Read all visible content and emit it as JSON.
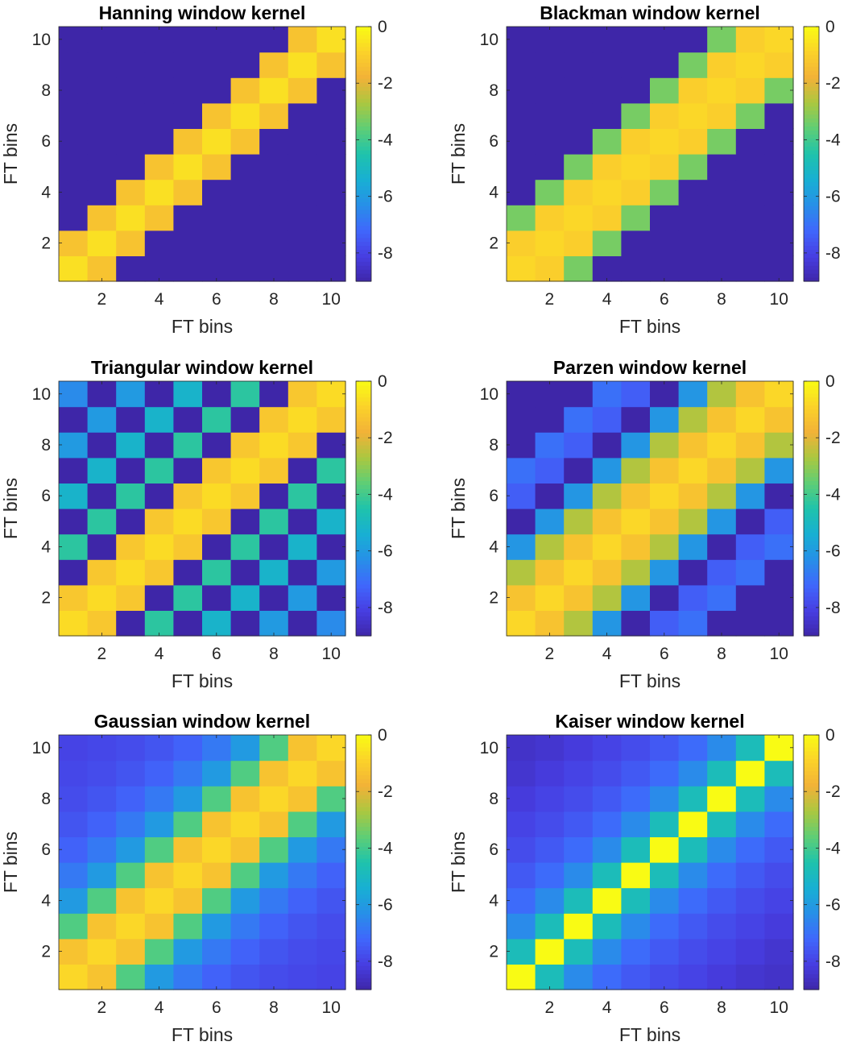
{
  "chart_data": [
    {
      "type": "heatmap",
      "title": "Hanning window kernel",
      "xlabel": "FT bins",
      "ylabel": "FT bins",
      "x": [
        1,
        2,
        3,
        4,
        5,
        6,
        7,
        8,
        9,
        10
      ],
      "y": [
        1,
        2,
        3,
        4,
        5,
        6,
        7,
        8,
        9,
        10
      ],
      "xticks": [
        2,
        4,
        6,
        8,
        10
      ],
      "yticks": [
        2,
        4,
        6,
        8,
        10
      ],
      "clim": [
        -9,
        0
      ],
      "colorbar_ticks": [
        0,
        -2,
        -4,
        -6,
        -8
      ],
      "values": [
        [
          -0.6,
          -1.3,
          -9,
          -9,
          -9,
          -9,
          -9,
          -9,
          -9,
          -9
        ],
        [
          -1.3,
          -0.6,
          -1.3,
          -9,
          -9,
          -9,
          -9,
          -9,
          -9,
          -9
        ],
        [
          -9,
          -1.3,
          -0.6,
          -1.3,
          -9,
          -9,
          -9,
          -9,
          -9,
          -9
        ],
        [
          -9,
          -9,
          -1.3,
          -0.6,
          -1.3,
          -9,
          -9,
          -9,
          -9,
          -9
        ],
        [
          -9,
          -9,
          -9,
          -1.3,
          -0.6,
          -1.3,
          -9,
          -9,
          -9,
          -9
        ],
        [
          -9,
          -9,
          -9,
          -9,
          -1.3,
          -0.6,
          -1.3,
          -9,
          -9,
          -9
        ],
        [
          -9,
          -9,
          -9,
          -9,
          -9,
          -1.3,
          -0.6,
          -1.3,
          -9,
          -9
        ],
        [
          -9,
          -9,
          -9,
          -9,
          -9,
          -9,
          -1.3,
          -0.6,
          -1.3,
          -9
        ],
        [
          -9,
          -9,
          -9,
          -9,
          -9,
          -9,
          -9,
          -1.3,
          -0.6,
          -1.3
        ],
        [
          -9,
          -9,
          -9,
          -9,
          -9,
          -9,
          -9,
          -9,
          -1.3,
          -0.6
        ]
      ]
    },
    {
      "type": "heatmap",
      "title": "Blackman window kernel",
      "xlabel": "FT bins",
      "ylabel": "FT bins",
      "x": [
        1,
        2,
        3,
        4,
        5,
        6,
        7,
        8,
        9,
        10
      ],
      "y": [
        1,
        2,
        3,
        4,
        5,
        6,
        7,
        8,
        9,
        10
      ],
      "xticks": [
        2,
        4,
        6,
        8,
        10
      ],
      "yticks": [
        2,
        4,
        6,
        8,
        10
      ],
      "clim": [
        -9,
        0
      ],
      "colorbar_ticks": [
        0,
        -2,
        -4,
        -6,
        -8
      ],
      "values": [
        [
          -0.8,
          -1.0,
          -3.3,
          -9,
          -9,
          -9,
          -9,
          -9,
          -9,
          -9
        ],
        [
          -1.0,
          -0.8,
          -1.0,
          -3.3,
          -9,
          -9,
          -9,
          -9,
          -9,
          -9
        ],
        [
          -3.3,
          -1.0,
          -0.8,
          -1.0,
          -3.3,
          -9,
          -9,
          -9,
          -9,
          -9
        ],
        [
          -9,
          -3.3,
          -1.0,
          -0.8,
          -1.0,
          -3.3,
          -9,
          -9,
          -9,
          -9
        ],
        [
          -9,
          -9,
          -3.3,
          -1.0,
          -0.8,
          -1.0,
          -3.3,
          -9,
          -9,
          -9
        ],
        [
          -9,
          -9,
          -9,
          -3.3,
          -1.0,
          -0.8,
          -1.0,
          -3.3,
          -9,
          -9
        ],
        [
          -9,
          -9,
          -9,
          -9,
          -3.3,
          -1.0,
          -0.8,
          -1.0,
          -3.3,
          -9
        ],
        [
          -9,
          -9,
          -9,
          -9,
          -9,
          -3.3,
          -1.0,
          -0.8,
          -1.0,
          -3.3
        ],
        [
          -9,
          -9,
          -9,
          -9,
          -9,
          -9,
          -3.3,
          -1.0,
          -0.8,
          -1.0
        ],
        [
          -9,
          -9,
          -9,
          -9,
          -9,
          -9,
          -9,
          -3.3,
          -1.0,
          -0.8
        ]
      ]
    },
    {
      "type": "heatmap",
      "title": "Triangular window kernel",
      "xlabel": "FT bins",
      "ylabel": "FT bins",
      "x": [
        1,
        2,
        3,
        4,
        5,
        6,
        7,
        8,
        9,
        10
      ],
      "y": [
        1,
        2,
        3,
        4,
        5,
        6,
        7,
        8,
        9,
        10
      ],
      "xticks": [
        2,
        4,
        6,
        8,
        10
      ],
      "yticks": [
        2,
        4,
        6,
        8,
        10
      ],
      "clim": [
        -9,
        0
      ],
      "colorbar_ticks": [
        0,
        -2,
        -4,
        -6,
        -8
      ],
      "values": [
        [
          -0.7,
          -1.2,
          -9,
          -4.3,
          -9,
          -5.2,
          -9,
          -6.0,
          -9,
          -6.4
        ],
        [
          -1.2,
          -0.7,
          -1.2,
          -9,
          -4.3,
          -9,
          -5.2,
          -9,
          -6.0,
          -9
        ],
        [
          -9,
          -1.2,
          -0.7,
          -1.2,
          -9,
          -4.3,
          -9,
          -5.2,
          -9,
          -6.0
        ],
        [
          -4.3,
          -9,
          -1.2,
          -0.7,
          -1.2,
          -9,
          -4.3,
          -9,
          -5.2,
          -9
        ],
        [
          -9,
          -4.3,
          -9,
          -1.2,
          -0.7,
          -1.2,
          -9,
          -4.3,
          -9,
          -5.2
        ],
        [
          -5.2,
          -9,
          -4.3,
          -9,
          -1.2,
          -0.7,
          -1.2,
          -9,
          -4.3,
          -9
        ],
        [
          -9,
          -5.2,
          -9,
          -4.3,
          -9,
          -1.2,
          -0.7,
          -1.2,
          -9,
          -4.3
        ],
        [
          -6.0,
          -9,
          -5.2,
          -9,
          -4.3,
          -9,
          -1.2,
          -0.7,
          -1.2,
          -9
        ],
        [
          -9,
          -6.0,
          -9,
          -5.2,
          -9,
          -4.3,
          -9,
          -1.2,
          -0.7,
          -1.2
        ],
        [
          -6.4,
          -9,
          -6.0,
          -9,
          -5.2,
          -9,
          -4.3,
          -9,
          -1.2,
          -0.7
        ]
      ]
    },
    {
      "type": "heatmap",
      "title": "Parzen window kernel",
      "xlabel": "FT bins",
      "ylabel": "FT bins",
      "x": [
        1,
        2,
        3,
        4,
        5,
        6,
        7,
        8,
        9,
        10
      ],
      "y": [
        1,
        2,
        3,
        4,
        5,
        6,
        7,
        8,
        9,
        10
      ],
      "xticks": [
        2,
        4,
        6,
        8,
        10
      ],
      "yticks": [
        2,
        4,
        6,
        8,
        10
      ],
      "clim": [
        -9,
        0
      ],
      "colorbar_ticks": [
        0,
        -2,
        -4,
        -6,
        -8
      ],
      "values": [
        [
          -0.8,
          -1.3,
          -2.6,
          -6.1,
          -9,
          -7.4,
          -7.0,
          -9,
          -9,
          -9
        ],
        [
          -1.3,
          -0.8,
          -1.3,
          -2.6,
          -6.1,
          -9,
          -7.4,
          -7.0,
          -9,
          -9
        ],
        [
          -2.6,
          -1.3,
          -0.8,
          -1.3,
          -2.6,
          -6.1,
          -9,
          -7.4,
          -7.0,
          -9
        ],
        [
          -6.1,
          -2.6,
          -1.3,
          -0.8,
          -1.3,
          -2.6,
          -6.1,
          -9,
          -7.4,
          -7.0
        ],
        [
          -9,
          -6.1,
          -2.6,
          -1.3,
          -0.8,
          -1.3,
          -2.6,
          -6.1,
          -9,
          -7.4
        ],
        [
          -7.4,
          -9,
          -6.1,
          -2.6,
          -1.3,
          -0.8,
          -1.3,
          -2.6,
          -6.1,
          -9
        ],
        [
          -7.0,
          -7.4,
          -9,
          -6.1,
          -2.6,
          -1.3,
          -0.8,
          -1.3,
          -2.6,
          -6.1
        ],
        [
          -9,
          -7.0,
          -7.4,
          -9,
          -6.1,
          -2.6,
          -1.3,
          -0.8,
          -1.3,
          -2.6
        ],
        [
          -9,
          -9,
          -7.0,
          -7.4,
          -9,
          -6.1,
          -2.6,
          -1.3,
          -0.8,
          -1.3
        ],
        [
          -9,
          -9,
          -9,
          -7.0,
          -7.4,
          -9,
          -6.1,
          -2.6,
          -1.3,
          -0.8
        ]
      ]
    },
    {
      "type": "heatmap",
      "title": "Gaussian window kernel",
      "xlabel": "FT bins",
      "ylabel": "FT bins",
      "x": [
        1,
        2,
        3,
        4,
        5,
        6,
        7,
        8,
        9,
        10
      ],
      "y": [
        1,
        2,
        3,
        4,
        5,
        6,
        7,
        8,
        9,
        10
      ],
      "xticks": [
        2,
        4,
        6,
        8,
        10
      ],
      "yticks": [
        2,
        4,
        6,
        8,
        10
      ],
      "clim": [
        -9,
        0
      ],
      "colorbar_ticks": [
        0,
        -2,
        -4,
        -6,
        -8
      ],
      "values": [
        [
          -0.8,
          -1.3,
          -3.8,
          -6.0,
          -6.8,
          -7.3,
          -7.6,
          -7.8,
          -7.9,
          -8.0
        ],
        [
          -1.3,
          -0.8,
          -1.3,
          -3.8,
          -6.0,
          -6.8,
          -7.3,
          -7.6,
          -7.8,
          -7.9
        ],
        [
          -3.8,
          -1.3,
          -0.8,
          -1.3,
          -3.8,
          -6.0,
          -6.8,
          -7.3,
          -7.6,
          -7.8
        ],
        [
          -6.0,
          -3.8,
          -1.3,
          -0.8,
          -1.3,
          -3.8,
          -6.0,
          -6.8,
          -7.3,
          -7.6
        ],
        [
          -6.8,
          -6.0,
          -3.8,
          -1.3,
          -0.8,
          -1.3,
          -3.8,
          -6.0,
          -6.8,
          -7.3
        ],
        [
          -7.3,
          -6.8,
          -6.0,
          -3.8,
          -1.3,
          -0.8,
          -1.3,
          -3.8,
          -6.0,
          -6.8
        ],
        [
          -7.6,
          -7.3,
          -6.8,
          -6.0,
          -3.8,
          -1.3,
          -0.8,
          -1.3,
          -3.8,
          -6.0
        ],
        [
          -7.8,
          -7.6,
          -7.3,
          -6.8,
          -6.0,
          -3.8,
          -1.3,
          -0.8,
          -1.3,
          -3.8
        ],
        [
          -7.9,
          -7.8,
          -7.6,
          -7.3,
          -6.8,
          -6.0,
          -3.8,
          -1.3,
          -0.8,
          -1.3
        ],
        [
          -8.0,
          -7.9,
          -7.8,
          -7.6,
          -7.3,
          -6.8,
          -6.0,
          -3.8,
          -1.3,
          -0.8
        ]
      ]
    },
    {
      "type": "heatmap",
      "title": "Kaiser window kernel",
      "xlabel": "FT bins",
      "ylabel": "FT bins",
      "x": [
        1,
        2,
        3,
        4,
        5,
        6,
        7,
        8,
        9,
        10
      ],
      "y": [
        1,
        2,
        3,
        4,
        5,
        6,
        7,
        8,
        9,
        10
      ],
      "xticks": [
        2,
        4,
        6,
        8,
        10
      ],
      "yticks": [
        2,
        4,
        6,
        8,
        10
      ],
      "clim": [
        -9,
        0
      ],
      "colorbar_ticks": [
        0,
        -2,
        -4,
        -6,
        -8
      ],
      "values": [
        [
          0,
          -4.8,
          -6.4,
          -7.1,
          -7.5,
          -7.8,
          -8.0,
          -8.2,
          -8.4,
          -8.5
        ],
        [
          -4.8,
          0,
          -4.8,
          -6.4,
          -7.1,
          -7.5,
          -7.8,
          -8.0,
          -8.2,
          -8.4
        ],
        [
          -6.4,
          -4.8,
          0,
          -4.8,
          -6.4,
          -7.1,
          -7.5,
          -7.8,
          -8.0,
          -8.2
        ],
        [
          -7.1,
          -6.4,
          -4.8,
          0,
          -4.8,
          -6.4,
          -7.1,
          -7.5,
          -7.8,
          -8.0
        ],
        [
          -7.5,
          -7.1,
          -6.4,
          -4.8,
          0,
          -4.8,
          -6.4,
          -7.1,
          -7.5,
          -7.8
        ],
        [
          -7.8,
          -7.5,
          -7.1,
          -6.4,
          -4.8,
          0,
          -4.8,
          -6.4,
          -7.1,
          -7.5
        ],
        [
          -8.0,
          -7.8,
          -7.5,
          -7.1,
          -6.4,
          -4.8,
          0,
          -4.8,
          -6.4,
          -7.1
        ],
        [
          -8.2,
          -8.0,
          -7.8,
          -7.5,
          -7.1,
          -6.4,
          -4.8,
          0,
          -4.8,
          -6.4
        ],
        [
          -8.4,
          -8.2,
          -8.0,
          -7.8,
          -7.5,
          -7.1,
          -6.4,
          -4.8,
          0,
          -4.8
        ],
        [
          -8.5,
          -8.4,
          -8.2,
          -8.0,
          -7.8,
          -7.5,
          -7.1,
          -6.4,
          -4.8,
          0
        ]
      ]
    }
  ]
}
